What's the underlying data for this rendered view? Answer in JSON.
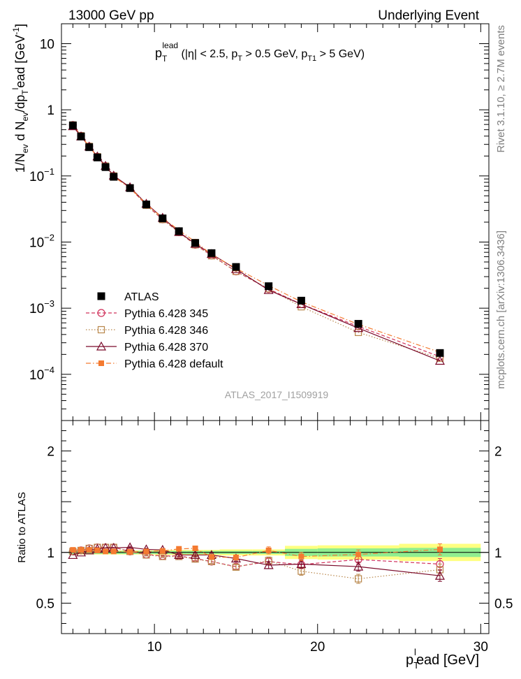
{
  "header": {
    "left": "13000 GeV pp",
    "right": "Underlying Event"
  },
  "side_labels": {
    "rivet": "Rivet 3.1.10, ≥ 2.7M events",
    "mcplots": "mcplots.cern.ch [arXiv:1306.3436]"
  },
  "analysis_id": "ATLAS_2017_I1509919",
  "colors": {
    "atlas": "#000000",
    "p345": "#d0305a",
    "p346": "#b8864a",
    "p370": "#7a0a2a",
    "pdefault": "#f47a30",
    "band_inner": "#90ee90",
    "band_outer": "#ffff80"
  },
  "chart_data": [
    {
      "type": "line",
      "title": "pT lead (|η| < 2.5, pT > 0.5 GeV, pT1 > 5 GeV)",
      "title_parts": {
        "p": "p",
        "sub_t": "T",
        "sup_lead": "lead",
        "eta_cut": " (|η| < 2.5, p",
        "sub_t2": "T",
        "pt_cut": " > 0.5 GeV, p",
        "sub_t1": "T1",
        "pt1_cut": " > 5 GeV)"
      },
      "ylabel": "1/N_ev d N_ev/dp_T^lead [GeV^-1]",
      "ylabel_parts": {
        "a": "1/N",
        "ev1": "ev",
        "b": " d N",
        "ev2": "ev",
        "c": "/dp",
        "t": "T",
        "sup_l": "l",
        "d": "ead [GeV",
        "sup_m1": "-1",
        "e": "]"
      },
      "yscale": "log",
      "xlim": [
        4.3,
        30.5
      ],
      "ylim": [
        2e-05,
        20
      ],
      "ytick_labels": [
        {
          "value": 10,
          "base": "10",
          "exp": ""
        },
        {
          "value": 1,
          "base": "1",
          "exp": ""
        },
        {
          "value": 0.1,
          "base": "10",
          "exp": "−1"
        },
        {
          "value": 0.01,
          "base": "10",
          "exp": "−2"
        },
        {
          "value": 0.001,
          "base": "10",
          "exp": "−3"
        },
        {
          "value": 0.0001,
          "base": "10",
          "exp": "−4"
        }
      ],
      "x": [
        5.0,
        5.5,
        6.0,
        6.5,
        7.0,
        7.5,
        8.5,
        9.5,
        10.5,
        11.5,
        12.5,
        13.5,
        15.0,
        17.0,
        19.0,
        22.5,
        27.5
      ],
      "legend_position": "lower-left",
      "series": [
        {
          "name": "ATLAS",
          "key": "atlas",
          "marker": "filled-square",
          "line": "none",
          "values": [
            0.58,
            0.395,
            0.272,
            0.19,
            0.136,
            0.097,
            0.0655,
            0.037,
            0.0228,
            0.0146,
            0.0097,
            0.0068,
            0.0042,
            0.00215,
            0.0013,
            0.00058,
            0.00021
          ]
        },
        {
          "name": "Pythia 6.428 345",
          "key": "p345",
          "marker": "open-circle",
          "line": "dashed",
          "values": [
            0.59,
            0.405,
            0.28,
            0.196,
            0.141,
            0.1,
            0.066,
            0.0363,
            0.022,
            0.0141,
            0.0091,
            0.0063,
            0.0036,
            0.00195,
            0.00115,
            0.00053,
            0.000185
          ]
        },
        {
          "name": "Pythia 6.428 346",
          "key": "p346",
          "marker": "open-square",
          "line": "dotted",
          "values": [
            0.59,
            0.405,
            0.28,
            0.196,
            0.141,
            0.1,
            0.066,
            0.036,
            0.0219,
            0.014,
            0.0091,
            0.0062,
            0.0036,
            0.00197,
            0.00105,
            0.00043,
            0.000175
          ]
        },
        {
          "name": "Pythia 6.428 370",
          "key": "p370",
          "marker": "open-triangle",
          "line": "solid",
          "values": [
            0.565,
            0.395,
            0.278,
            0.197,
            0.142,
            0.101,
            0.0675,
            0.038,
            0.0233,
            0.0142,
            0.0094,
            0.0066,
            0.0039,
            0.00188,
            0.00115,
            0.0005,
            0.00016
          ]
        },
        {
          "name": "Pythia 6.428 default",
          "key": "pdefault",
          "marker": "filled-square-small",
          "line": "dashdot",
          "values": [
            0.595,
            0.405,
            0.279,
            0.193,
            0.137,
            0.097,
            0.066,
            0.0375,
            0.0232,
            0.0151,
            0.0101,
            0.0065,
            0.004,
            0.0022,
            0.00125,
            0.00057,
            0.000215
          ]
        }
      ]
    },
    {
      "type": "line",
      "title": "",
      "xlabel": "pT lead [GeV]",
      "xlabel_parts": {
        "p": "p",
        "sub_t": "T",
        "sup_l": "l",
        "rest": "ead [GeV]"
      },
      "ylabel": "Ratio to ATLAS",
      "xlim": [
        4.3,
        30.5
      ],
      "ylim": [
        0.2,
        2.3
      ],
      "yticks": [
        0.5,
        1,
        2
      ],
      "ytick_labels": [
        "0.5",
        "1",
        "2"
      ],
      "xticks": [
        10,
        20,
        30
      ],
      "xtick_labels": [
        "10",
        "20",
        "30"
      ],
      "x": [
        5.0,
        5.5,
        6.0,
        6.5,
        7.0,
        7.5,
        8.5,
        9.5,
        10.5,
        11.5,
        12.5,
        13.5,
        15.0,
        17.0,
        19.0,
        22.5,
        27.5
      ],
      "band_edges": [
        4.75,
        5.25,
        5.75,
        6.25,
        6.75,
        7.25,
        8.0,
        9.0,
        10.0,
        11.0,
        12.0,
        13.0,
        14.0,
        16.0,
        18.0,
        20.0,
        25.0,
        30.0
      ],
      "band_inner_halfwidth": [
        0.015,
        0.015,
        0.015,
        0.015,
        0.015,
        0.015,
        0.015,
        0.015,
        0.015,
        0.015,
        0.015,
        0.015,
        0.015,
        0.015,
        0.035,
        0.04,
        0.045
      ],
      "band_outer_halfwidth": [
        0.02,
        0.02,
        0.02,
        0.02,
        0.02,
        0.02,
        0.02,
        0.02,
        0.025,
        0.025,
        0.025,
        0.025,
        0.03,
        0.03,
        0.065,
        0.07,
        0.085
      ],
      "series": [
        {
          "name": "Pythia 6.428 345",
          "key": "p345",
          "values": [
            1.01,
            1.02,
            1.04,
            1.05,
            1.05,
            1.05,
            1.01,
            0.98,
            0.965,
            0.965,
            0.94,
            0.91,
            0.86,
            0.91,
            0.88,
            0.93,
            0.885
          ],
          "errors": [
            0.005,
            0.005,
            0.005,
            0.005,
            0.005,
            0.005,
            0.01,
            0.01,
            0.01,
            0.015,
            0.02,
            0.02,
            0.025,
            0.035,
            0.04,
            0.045,
            0.055
          ]
        },
        {
          "name": "Pythia 6.428 346",
          "key": "p346",
          "values": [
            1.01,
            1.02,
            1.04,
            1.05,
            1.05,
            1.05,
            1.01,
            0.975,
            0.96,
            0.96,
            0.935,
            0.91,
            0.855,
            0.92,
            0.815,
            0.74,
            0.83
          ],
          "errors": [
            0.005,
            0.005,
            0.005,
            0.005,
            0.005,
            0.005,
            0.01,
            0.01,
            0.01,
            0.015,
            0.02,
            0.02,
            0.025,
            0.035,
            0.04,
            0.045,
            0.055
          ]
        },
        {
          "name": "Pythia 6.428 370",
          "key": "p370",
          "values": [
            0.975,
            1.0,
            1.02,
            1.035,
            1.045,
            1.045,
            1.05,
            1.03,
            1.025,
            0.975,
            0.975,
            0.975,
            0.94,
            0.875,
            0.885,
            0.86,
            0.77
          ],
          "errors": [
            0.005,
            0.005,
            0.005,
            0.005,
            0.005,
            0.005,
            0.01,
            0.01,
            0.01,
            0.015,
            0.02,
            0.02,
            0.025,
            0.035,
            0.04,
            0.045,
            0.055
          ]
        },
        {
          "name": "Pythia 6.428 default",
          "key": "pdefault",
          "values": [
            1.025,
            1.025,
            1.025,
            1.02,
            1.01,
            1.01,
            1.005,
            1.01,
            1.015,
            1.035,
            1.04,
            0.955,
            0.95,
            1.02,
            0.96,
            0.98,
            1.03
          ],
          "errors": [
            0.005,
            0.005,
            0.005,
            0.005,
            0.005,
            0.005,
            0.01,
            0.01,
            0.01,
            0.015,
            0.02,
            0.02,
            0.025,
            0.035,
            0.04,
            0.045,
            0.055
          ]
        }
      ]
    }
  ]
}
